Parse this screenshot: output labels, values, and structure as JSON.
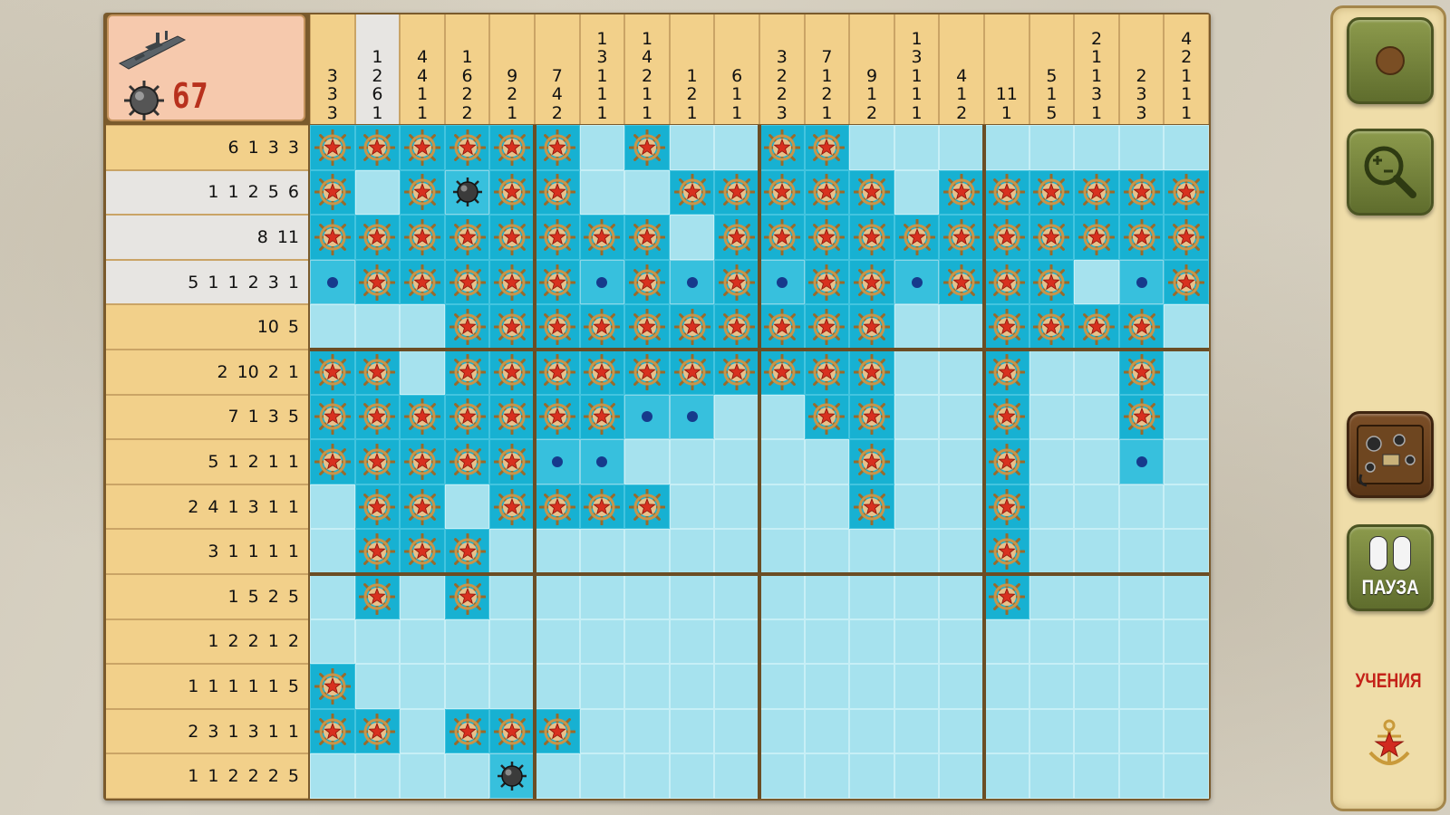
{
  "header": {
    "mines_remaining": "67",
    "ship_icon": "warship-icon",
    "mine_icon": "sea-mine-icon"
  },
  "puzzle": {
    "columns": 20,
    "rows": 15,
    "column_clues": [
      [
        "3",
        "3",
        "3"
      ],
      [
        "1",
        "2",
        "6",
        "1"
      ],
      [
        "4",
        "4",
        "1",
        "1"
      ],
      [
        "1",
        "6",
        "2",
        "2"
      ],
      [
        "9",
        "2",
        "1"
      ],
      [
        "7",
        "4",
        "2"
      ],
      [
        "1",
        "3",
        "1",
        "1",
        "1"
      ],
      [
        "1",
        "4",
        "2",
        "1",
        "1"
      ],
      [
        "1",
        "2",
        "1"
      ],
      [
        "6",
        "1",
        "1"
      ],
      [
        "3",
        "2",
        "2",
        "3"
      ],
      [
        "7",
        "1",
        "2",
        "1"
      ],
      [
        "9",
        "1",
        "2"
      ],
      [
        "1",
        "3",
        "1",
        "1",
        "1"
      ],
      [
        "4",
        "1",
        "2"
      ],
      [
        "11",
        "1"
      ],
      [
        "5",
        "1",
        "5"
      ],
      [
        "2",
        "1",
        "1",
        "3",
        "1"
      ],
      [
        "2",
        "3",
        "3"
      ],
      [
        "4",
        "2",
        "1",
        "1",
        "1"
      ]
    ],
    "row_clues": [
      "6 1 3 3",
      "1 1 2 5 6",
      "8 11",
      "5 1 1 2 3 1",
      "10 5",
      "2 10 2 1",
      "7 1 3 5",
      "5 1 2 1 1",
      "2 4 1 3 1 1",
      "3 1 1 1 1",
      "1 5 2 5",
      "1 2 2 1 2",
      "1 1 1 1 1 5",
      "2 3 1 3 1 1",
      "1 1 2 2 2 5"
    ],
    "highlighted_column": 1,
    "highlighted_rows": [
      1,
      2,
      3
    ],
    "grid_legend": {
      "F": "ship-wheel-star-filled",
      "D": "dot-marked-empty",
      "M": "sea-mine",
      ".": "unrevealed"
    },
    "grid": [
      "FFFFFF.F..FF........",
      "F.FMFF..FFFFF.FFFFFF",
      "FFFFFFFF.FFFFFFFFFFF",
      "DFFFFFDFDFDFFDFFF.DF",
      "...FFFFFFFFFF..FFFF.",
      "FF.FFFFFFFFFF..F..F.",
      "FFFFFFFDD..FF..F..F.",
      "FFFFFDD.....F..F..D.",
      ".FF.FFFF....F..F....",
      ".FFF...........F....",
      ".F.F...........F....",
      "....................",
      "F...................",
      "FF.FFF..............",
      "....M..............."
    ]
  },
  "sidebar": {
    "record_button_icon": "record-dot-icon",
    "zoom_button_icon": "magnifier-zoom-icon",
    "radio_button_icon": "field-radio-icon",
    "pause_label": "ПАУЗА",
    "mode_label": "УЧЕНИЯ",
    "emblem_icon": "anchor-star-emblem-icon"
  },
  "colors": {
    "filled_cell": "#17b1d2",
    "empty_cell": "#a6e2ee",
    "clue_bg": "#f2d08a",
    "clue_highlight": "#e7e5e2",
    "mine_counter": "#b8311d",
    "mode_label": "#c42219"
  }
}
